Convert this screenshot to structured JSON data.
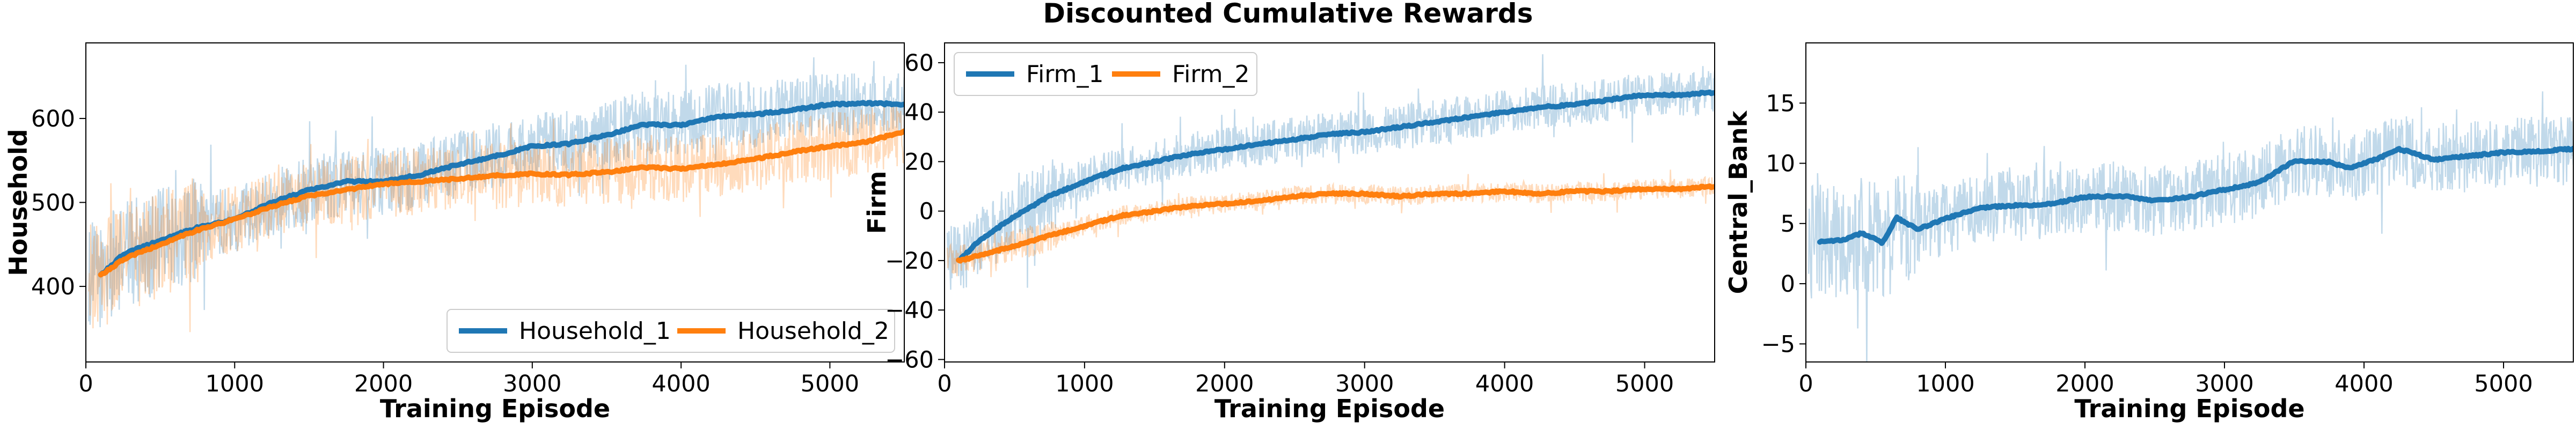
{
  "title": "Discounted Cumulative Rewards",
  "chart_data": [
    {
      "type": "line",
      "ylabel": "Household",
      "xlabel": "Training Episode",
      "xlim": [
        0,
        5500
      ],
      "ylim": [
        310,
        690
      ],
      "xticks": [
        0,
        1000,
        2000,
        3000,
        4000,
        5000
      ],
      "yticks": [
        400,
        500,
        600
      ],
      "legend_loc": "lower-right",
      "legend_cols": 2,
      "series": [
        {
          "name": "Household_1",
          "color": "#1f77b4",
          "x": [
            100,
            250,
            500,
            750,
            1000,
            1250,
            1500,
            1750,
            2000,
            2250,
            2500,
            2750,
            3000,
            3250,
            3500,
            3750,
            4000,
            4250,
            4500,
            4750,
            5000,
            5250,
            5500
          ],
          "y": [
            413,
            438,
            455,
            470,
            480,
            500,
            515,
            525,
            525,
            533,
            545,
            555,
            567,
            570,
            580,
            593,
            592,
            602,
            605,
            610,
            617,
            618,
            617
          ],
          "noise": 40
        },
        {
          "name": "Household_2",
          "color": "#ff7f0e",
          "x": [
            100,
            250,
            500,
            750,
            1000,
            1250,
            1500,
            1750,
            2000,
            2250,
            2500,
            2750,
            3000,
            3250,
            3500,
            3750,
            4000,
            4250,
            4500,
            4750,
            5000,
            5250,
            5500
          ],
          "y": [
            413,
            432,
            450,
            467,
            480,
            495,
            508,
            515,
            522,
            525,
            528,
            532,
            534,
            533,
            536,
            542,
            540,
            545,
            552,
            560,
            567,
            572,
            585
          ],
          "noise": 40
        }
      ]
    },
    {
      "type": "line",
      "ylabel": "Firm",
      "xlabel": "Training Episode",
      "xlim": [
        0,
        5500
      ],
      "ylim": [
        -61,
        68
      ],
      "xticks": [
        0,
        1000,
        2000,
        3000,
        4000,
        5000
      ],
      "yticks": [
        -60,
        -40,
        -20,
        0,
        20,
        40,
        60
      ],
      "legend_loc": "upper-left",
      "legend_cols": 2,
      "series": [
        {
          "name": "Firm_1",
          "color": "#1f77b4",
          "x": [
            100,
            250,
            500,
            750,
            1000,
            1250,
            1500,
            1750,
            2000,
            2250,
            2500,
            2750,
            3000,
            3250,
            3500,
            3750,
            4000,
            4250,
            4500,
            4750,
            5000,
            5250,
            5500
          ],
          "y": [
            -20,
            -12,
            -2,
            6,
            12,
            17,
            20,
            23,
            25,
            27,
            29,
            31,
            32,
            34,
            36,
            38,
            40,
            42,
            43,
            45,
            47,
            47,
            48
          ],
          "noise": 9
        },
        {
          "name": "Firm_2",
          "color": "#ff7f0e",
          "x": [
            100,
            250,
            500,
            750,
            1000,
            1250,
            1500,
            1750,
            2000,
            2250,
            2500,
            2750,
            3000,
            3250,
            3500,
            3750,
            4000,
            4250,
            4500,
            4750,
            5000,
            5250,
            5500
          ],
          "y": [
            -20,
            -18,
            -14,
            -10,
            -6,
            -2,
            0,
            2,
            3,
            4,
            6,
            7,
            7,
            6,
            7,
            7,
            8,
            7,
            8,
            8,
            9,
            9,
            10
          ],
          "noise": 4
        }
      ]
    },
    {
      "type": "line",
      "ylabel": "Central_Bank",
      "xlabel": "Training Episode",
      "xlim": [
        0,
        5500
      ],
      "ylim": [
        -6.5,
        20
      ],
      "xticks": [
        0,
        1000,
        2000,
        3000,
        4000,
        5000
      ],
      "yticks": [
        -5,
        0,
        5,
        10,
        15
      ],
      "legend_loc": "none",
      "series": [
        {
          "name": "Central_Bank",
          "color": "#1f77b4",
          "x": [
            100,
            250,
            400,
            550,
            650,
            800,
            1000,
            1250,
            1500,
            1750,
            2000,
            2250,
            2500,
            2750,
            3000,
            3250,
            3500,
            3750,
            3900,
            4100,
            4250,
            4500,
            4750,
            5000,
            5250,
            5500
          ],
          "y": [
            3.5,
            3.6,
            4.2,
            3.4,
            5.5,
            4.5,
            5.4,
            6.3,
            6.5,
            6.6,
            7.2,
            7.3,
            6.9,
            7.2,
            7.8,
            8.4,
            10.2,
            10.1,
            9.6,
            10.4,
            11.2,
            10.3,
            10.6,
            10.9,
            11.0,
            11.2
          ],
          "noise": 3
        }
      ]
    }
  ]
}
